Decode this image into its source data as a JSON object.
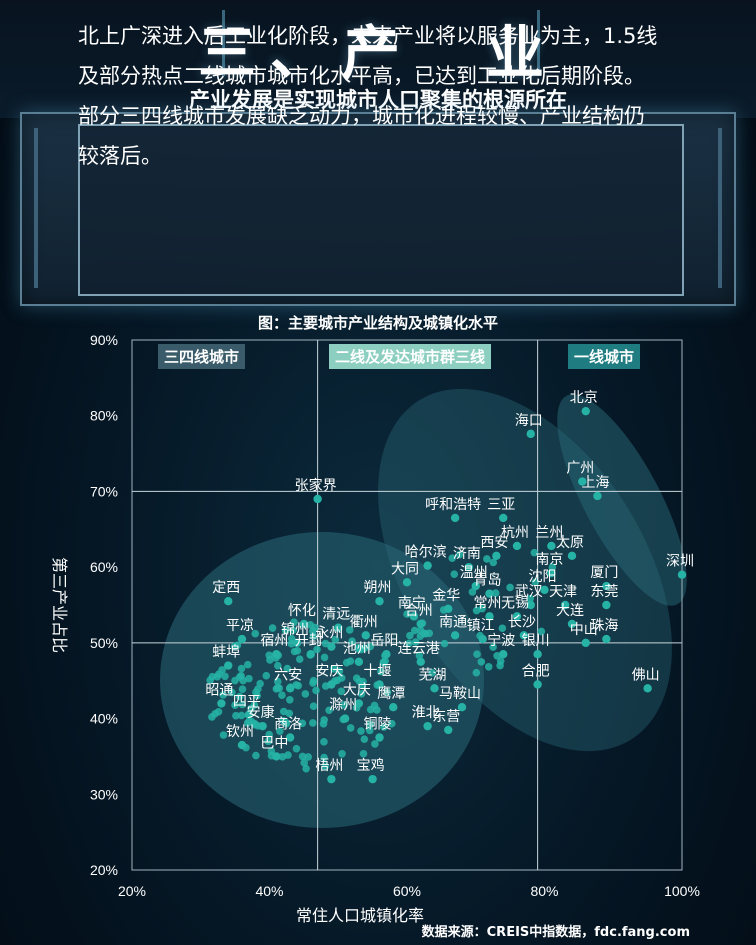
{
  "header": {
    "title": "三、产　业",
    "subtitle": "产业发展是实现城市人口聚集的根源所在"
  },
  "panel": {
    "text": "北上广深进入后工业化阶段，未来产业将以服务业为主，1.5线及部分热点二线城市城市化水平高，已达到工业化后期阶段。部分三四线城市发展缺乏动力，城市化进程较慢、产业结构仍较落后。"
  },
  "chart_title": "图：主要城市产业结构及城镇化水平",
  "source": "数据来源：CREIS中指数据，fdc.fang.com",
  "colors": {
    "point": "#26b3a6",
    "ellipse": "#2a6a78",
    "label_fill": "#3a5c6a",
    "label_mid": "#8ccfc0",
    "label_first": "#1f7d82"
  },
  "chart_data": {
    "type": "scatter",
    "title": "图：主要城市产业结构及城镇化水平",
    "xlabel": "常住人口城镇化率",
    "ylabel": "第三产业占比",
    "xlim": [
      0.2,
      1.0
    ],
    "ylim": [
      0.2,
      0.9
    ],
    "xticks": [
      "20%",
      "40%",
      "60%",
      "80%",
      "100%"
    ],
    "yticks": [
      "20%",
      "30%",
      "40%",
      "50%",
      "60%",
      "70%",
      "80%",
      "90%"
    ],
    "divider_x": [
      0.47,
      0.79
    ],
    "divider_y": [
      0.5,
      0.7
    ],
    "region_labels": [
      "三四线城市",
      "二线及发达城市群三线",
      "一线城市"
    ],
    "labeled_points": [
      {
        "name": "北京",
        "x": 0.86,
        "y": 0.806
      },
      {
        "name": "上海",
        "x": 0.877,
        "y": 0.694
      },
      {
        "name": "广州",
        "x": 0.855,
        "y": 0.713
      },
      {
        "name": "深圳",
        "x": 1.0,
        "y": 0.59
      },
      {
        "name": "海口",
        "x": 0.78,
        "y": 0.776
      },
      {
        "name": "张家界",
        "x": 0.47,
        "y": 0.69
      },
      {
        "name": "呼和浩特",
        "x": 0.67,
        "y": 0.665
      },
      {
        "name": "三亚",
        "x": 0.74,
        "y": 0.665
      },
      {
        "name": "杭州",
        "x": 0.76,
        "y": 0.628
      },
      {
        "name": "兰州",
        "x": 0.81,
        "y": 0.628
      },
      {
        "name": "太原",
        "x": 0.84,
        "y": 0.615
      },
      {
        "name": "哈尔滨",
        "x": 0.63,
        "y": 0.602
      },
      {
        "name": "西安",
        "x": 0.73,
        "y": 0.615
      },
      {
        "name": "济南",
        "x": 0.69,
        "y": 0.6
      },
      {
        "name": "大同",
        "x": 0.6,
        "y": 0.58
      },
      {
        "name": "温州",
        "x": 0.7,
        "y": 0.575
      },
      {
        "name": "南京",
        "x": 0.81,
        "y": 0.592
      },
      {
        "name": "厦门",
        "x": 0.89,
        "y": 0.575
      },
      {
        "name": "沈阳",
        "x": 0.8,
        "y": 0.57
      },
      {
        "name": "青岛",
        "x": 0.72,
        "y": 0.565
      },
      {
        "name": "天津",
        "x": 0.83,
        "y": 0.55
      },
      {
        "name": "武汉",
        "x": 0.78,
        "y": 0.55
      },
      {
        "name": "东莞",
        "x": 0.89,
        "y": 0.55
      },
      {
        "name": "朔州",
        "x": 0.56,
        "y": 0.555
      },
      {
        "name": "金华",
        "x": 0.66,
        "y": 0.545
      },
      {
        "name": "常州",
        "x": 0.72,
        "y": 0.535
      },
      {
        "name": "无锡",
        "x": 0.76,
        "y": 0.535
      },
      {
        "name": "定西",
        "x": 0.34,
        "y": 0.555
      },
      {
        "name": "南宁",
        "x": 0.61,
        "y": 0.535
      },
      {
        "name": "合州",
        "x": 0.62,
        "y": 0.525
      },
      {
        "name": "大连",
        "x": 0.84,
        "y": 0.525
      },
      {
        "name": "怀化",
        "x": 0.45,
        "y": 0.525
      },
      {
        "name": "清远",
        "x": 0.5,
        "y": 0.52
      },
      {
        "name": "衢州",
        "x": 0.54,
        "y": 0.51
      },
      {
        "name": "南通",
        "x": 0.67,
        "y": 0.51
      },
      {
        "name": "长沙",
        "x": 0.77,
        "y": 0.51
      },
      {
        "name": "镇江",
        "x": 0.71,
        "y": 0.505
      },
      {
        "name": "中山",
        "x": 0.86,
        "y": 0.5
      },
      {
        "name": "珠海",
        "x": 0.89,
        "y": 0.505
      },
      {
        "name": "平凉",
        "x": 0.36,
        "y": 0.505
      },
      {
        "name": "锦州",
        "x": 0.44,
        "y": 0.5
      },
      {
        "name": "永州",
        "x": 0.49,
        "y": 0.495
      },
      {
        "name": "岳阳",
        "x": 0.57,
        "y": 0.485
      },
      {
        "name": "宁波",
        "x": 0.74,
        "y": 0.485
      },
      {
        "name": "银川",
        "x": 0.79,
        "y": 0.485
      },
      {
        "name": "宿州",
        "x": 0.41,
        "y": 0.485
      },
      {
        "name": "开封",
        "x": 0.46,
        "y": 0.485
      },
      {
        "name": "池州",
        "x": 0.53,
        "y": 0.475
      },
      {
        "name": "连云港",
        "x": 0.62,
        "y": 0.475
      },
      {
        "name": "蚌埠",
        "x": 0.34,
        "y": 0.47
      },
      {
        "name": "十堰",
        "x": 0.56,
        "y": 0.445
      },
      {
        "name": "合肥",
        "x": 0.79,
        "y": 0.445
      },
      {
        "name": "佛山",
        "x": 0.95,
        "y": 0.44
      },
      {
        "name": "六安",
        "x": 0.43,
        "y": 0.44
      },
      {
        "name": "安庆",
        "x": 0.49,
        "y": 0.445
      },
      {
        "name": "芜湖",
        "x": 0.64,
        "y": 0.44
      },
      {
        "name": "大庆",
        "x": 0.53,
        "y": 0.42
      },
      {
        "name": "昭通",
        "x": 0.33,
        "y": 0.42
      },
      {
        "name": "马鞍山",
        "x": 0.68,
        "y": 0.415
      },
      {
        "name": "鹰潭",
        "x": 0.58,
        "y": 0.415
      },
      {
        "name": "四平",
        "x": 0.37,
        "y": 0.405
      },
      {
        "name": "滁州",
        "x": 0.51,
        "y": 0.4
      },
      {
        "name": "安康",
        "x": 0.39,
        "y": 0.39
      },
      {
        "name": "淮北",
        "x": 0.63,
        "y": 0.39
      },
      {
        "name": "东营",
        "x": 0.66,
        "y": 0.385
      },
      {
        "name": "商洛",
        "x": 0.43,
        "y": 0.375
      },
      {
        "name": "铜陵",
        "x": 0.56,
        "y": 0.375
      },
      {
        "name": "钦州",
        "x": 0.36,
        "y": 0.365
      },
      {
        "name": "巴中",
        "x": 0.41,
        "y": 0.35
      },
      {
        "name": "梧州",
        "x": 0.49,
        "y": 0.32
      },
      {
        "name": "宝鸡",
        "x": 0.55,
        "y": 0.32
      }
    ]
  }
}
